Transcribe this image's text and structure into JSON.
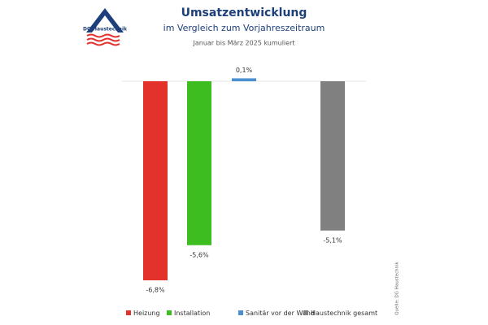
{
  "logo": {
    "text": "DG Haustechnik"
  },
  "chart_data": {
    "type": "bar",
    "title": "Umsatzentwicklung",
    "subtitle": "im Vergleich zum Vorjahreszeitraum",
    "period": "Januar bis März 2025 kumuliert",
    "source": "Quelle: DG Haustechnik",
    "categories": [
      "Heizung",
      "Installation",
      "Sanitär vor der Wand",
      "Haustechnik gesamt"
    ],
    "values": [
      -6.8,
      -5.6,
      0.1,
      -5.1
    ],
    "value_labels": [
      "-6,8%",
      "-5,6%",
      "0,1%",
      "-5,1%"
    ],
    "colors": [
      "#e3322b",
      "#3dbd1f",
      "#4a8fd0",
      "#808080"
    ],
    "legend": "bottom"
  }
}
